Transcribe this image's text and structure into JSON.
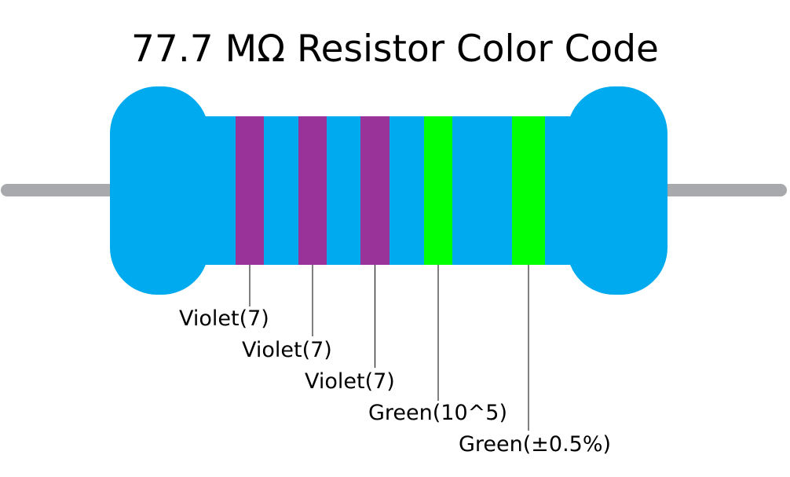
{
  "title": "77.7 MΩ Resistor Color Code",
  "bands": [
    {
      "label": "Violet(7)",
      "color": "#993399"
    },
    {
      "label": "Violet(7)",
      "color": "#993399"
    },
    {
      "label": "Violet(7)",
      "color": "#993399"
    },
    {
      "label": "Green(10^5)",
      "color": "#00ff00"
    },
    {
      "label": "Green(±0.5%)",
      "color": "#00ff00"
    }
  ]
}
